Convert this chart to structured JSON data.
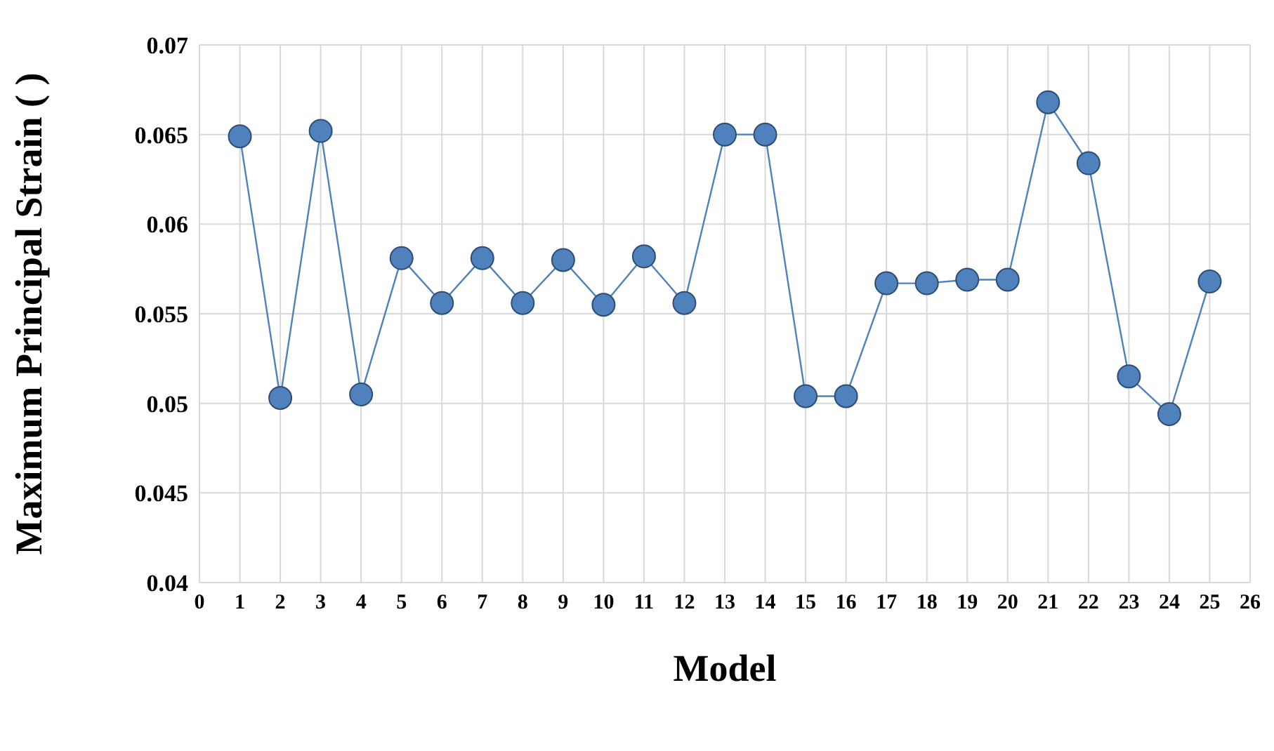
{
  "chart_data": {
    "type": "line",
    "xlabel": "Model",
    "ylabel": "Maximum Principal Strain ( )",
    "x": [
      1,
      2,
      3,
      4,
      5,
      6,
      7,
      8,
      9,
      10,
      11,
      12,
      13,
      14,
      15,
      16,
      17,
      18,
      19,
      20,
      21,
      22,
      23,
      24,
      25
    ],
    "series": [
      {
        "color": "#4f81bd",
        "values": [
          0.0649,
          0.0503,
          0.0652,
          0.0505,
          0.0581,
          0.0556,
          0.0581,
          0.0556,
          0.058,
          0.0555,
          0.0582,
          0.0556,
          0.065,
          0.065,
          0.0504,
          0.0504,
          0.0567,
          0.0567,
          0.0569,
          0.0569,
          0.0668,
          0.0634,
          0.0515,
          0.0494,
          0.0568
        ]
      }
    ],
    "xlim": [
      0,
      26
    ],
    "xticks": [
      0,
      1,
      2,
      3,
      4,
      5,
      6,
      7,
      8,
      9,
      10,
      11,
      12,
      13,
      14,
      15,
      16,
      17,
      18,
      19,
      20,
      21,
      22,
      23,
      24,
      25,
      26
    ],
    "ylim": [
      0.04,
      0.07
    ],
    "yticks": [
      0.04,
      0.045,
      0.05,
      0.055,
      0.06,
      0.065,
      0.07
    ],
    "grid": true,
    "marker": "circle",
    "line_style": "solid"
  }
}
